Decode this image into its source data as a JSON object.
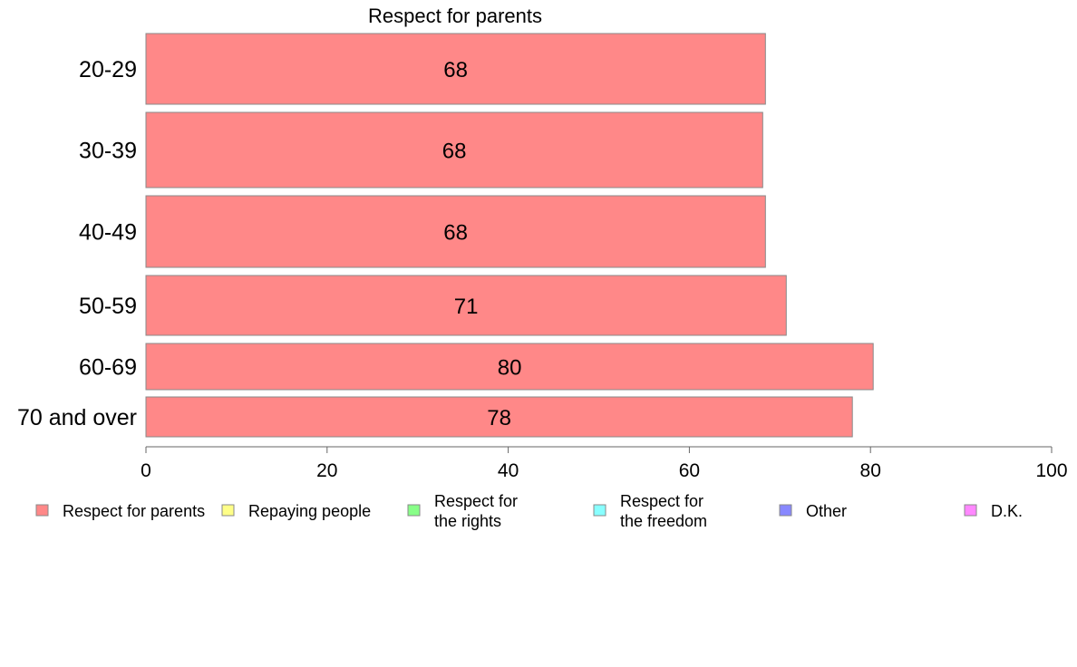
{
  "chart_data": {
    "type": "bar",
    "orientation": "horizontal",
    "title": "Respect for parents",
    "categories": [
      "20-29",
      "30-39",
      "40-49",
      "50-59",
      "60-69",
      "70 and over"
    ],
    "series": [
      {
        "name": "Respect for parents",
        "values": [
          68.4,
          68.1,
          68.4,
          70.7,
          80.3,
          78.0
        ],
        "labels": [
          "68",
          "68",
          "68",
          "71",
          "80",
          "78"
        ]
      }
    ],
    "xlim": [
      0,
      100
    ],
    "xticks": [
      0,
      20,
      40,
      60,
      80,
      100
    ],
    "grid": false,
    "legend_position": "bottom",
    "legend": [
      {
        "label": "Respect for parents",
        "color": "#ff8888"
      },
      {
        "label": "Repaying people",
        "color": "#ffff88"
      },
      {
        "label": "Respect for\nthe rights",
        "color": "#88ff88"
      },
      {
        "label": "Respect for\nthe freedom",
        "color": "#88ffff"
      },
      {
        "label": "Other",
        "color": "#8888ff"
      },
      {
        "label": "D.K.",
        "color": "#ff88ff"
      }
    ],
    "bar_color": "#ff8888",
    "bar_stroke": "#888888"
  }
}
